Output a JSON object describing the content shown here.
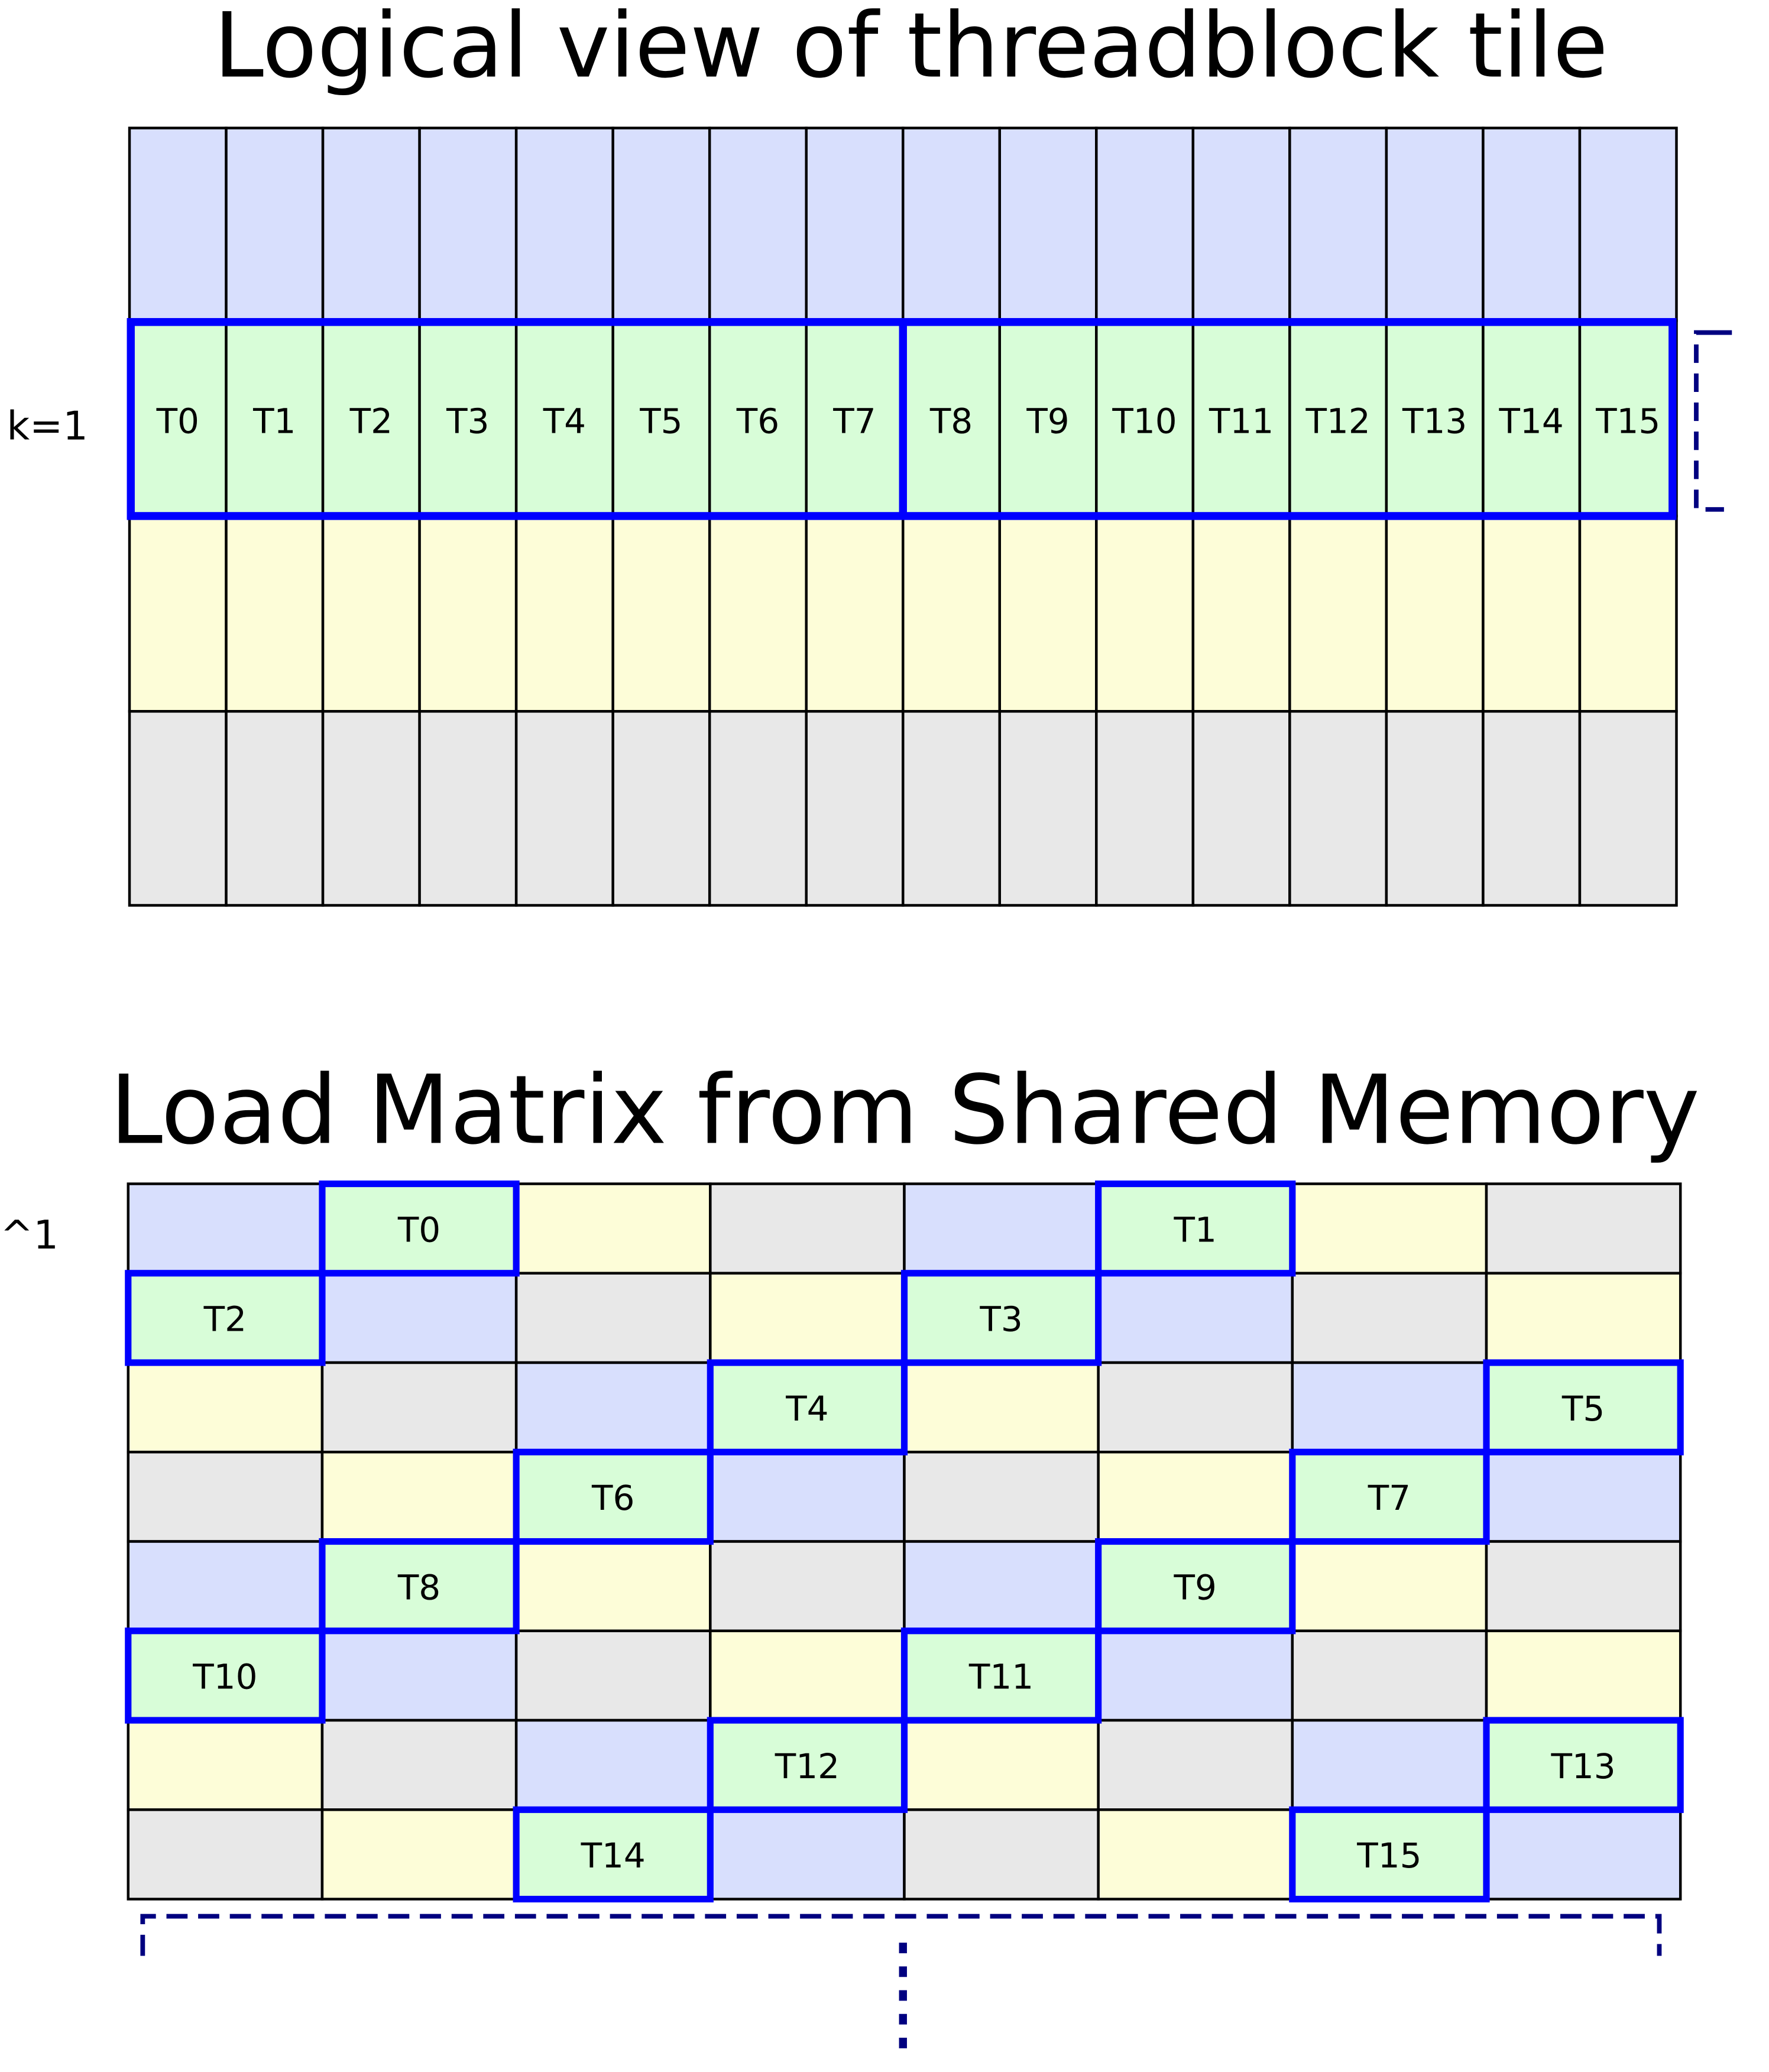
{
  "top": {
    "title": "Logical view of threadblock tile",
    "row_label": "k=1",
    "row_colors": [
      "#d8dffd",
      "#d8fdd8",
      "#fdfdd8",
      "#e8e8e8"
    ],
    "threads": [
      "T0",
      "T1",
      "T2",
      "T3",
      "T4",
      "T5",
      "T6",
      "T7",
      "T8",
      "T9",
      "T10",
      "T11",
      "T12",
      "T13",
      "T14",
      "T15"
    ]
  },
  "bottom": {
    "title": "Load Matrix from Shared Memory",
    "row_label": "^1",
    "grid": [
      [
        "B",
        "T0",
        "Y",
        "G",
        "B",
        "T1",
        "Y",
        "G"
      ],
      [
        "T2",
        "B",
        "G",
        "Y",
        "T3",
        "B",
        "G",
        "Y"
      ],
      [
        "Y",
        "G",
        "B",
        "T4",
        "Y",
        "G",
        "B",
        "T5"
      ],
      [
        "G",
        "Y",
        "T6",
        "B",
        "G",
        "Y",
        "T7",
        "B"
      ],
      [
        "B",
        "T8",
        "Y",
        "G",
        "B",
        "T9",
        "Y",
        "G"
      ],
      [
        "T10",
        "B",
        "G",
        "Y",
        "T11",
        "B",
        "G",
        "Y"
      ],
      [
        "Y",
        "G",
        "B",
        "T12",
        "Y",
        "G",
        "B",
        "T13"
      ],
      [
        "G",
        "Y",
        "T14",
        "B",
        "G",
        "Y",
        "T15",
        "B"
      ]
    ]
  },
  "colors": {
    "B": "#d8dffd",
    "Y": "#fdfdd8",
    "G": "#e8e8e8",
    "thread": "#d8fdd8",
    "highlight": "#0000ff",
    "bracket": "#000080"
  }
}
